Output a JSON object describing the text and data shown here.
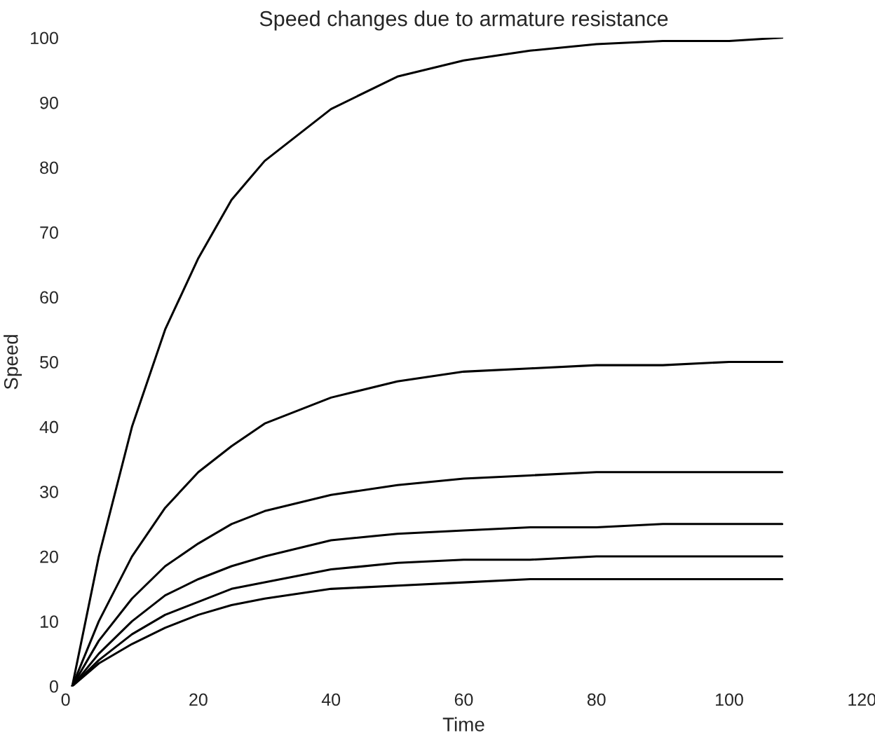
{
  "chart_data": {
    "type": "line",
    "title": "Speed changes due to armature resistance",
    "xlabel": "Time",
    "ylabel": "Speed",
    "x": [
      1,
      5,
      10,
      15,
      20,
      25,
      30,
      40,
      50,
      60,
      70,
      80,
      90,
      100,
      108
    ],
    "series": [
      {
        "color": "#000000",
        "values": [
          0,
          20,
          40,
          55,
          66,
          75,
          81,
          89,
          94,
          96.5,
          98,
          99,
          99.5,
          99.5,
          100
        ]
      },
      {
        "color": "#000000",
        "values": [
          0,
          10,
          20,
          27.5,
          33,
          37,
          40.5,
          44.5,
          47,
          48.5,
          49,
          49.5,
          49.5,
          50,
          50
        ]
      },
      {
        "color": "#000000",
        "values": [
          0,
          7,
          13.5,
          18.5,
          22,
          25,
          27,
          29.5,
          31,
          32,
          32.5,
          33,
          33,
          33,
          33
        ]
      },
      {
        "color": "#000000",
        "values": [
          0,
          5,
          10,
          14,
          16.5,
          18.5,
          20,
          22.5,
          23.5,
          24,
          24.5,
          24.5,
          25,
          25,
          25
        ]
      },
      {
        "color": "#000000",
        "values": [
          0,
          4,
          8,
          11,
          13,
          15,
          16,
          18,
          19,
          19.5,
          19.5,
          20,
          20,
          20,
          20
        ]
      },
      {
        "color": "#000000",
        "values": [
          0,
          3.5,
          6.5,
          9,
          11,
          12.5,
          13.5,
          15,
          15.5,
          16,
          16.5,
          16.5,
          16.5,
          16.5,
          16.5
        ]
      }
    ],
    "xlim": [
      0,
      120
    ],
    "xticks": [
      0,
      20,
      40,
      60,
      80,
      100,
      120
    ],
    "ylim": [
      0,
      100
    ],
    "yticks": [
      0,
      10,
      20,
      30,
      40,
      50,
      60,
      70,
      80,
      90,
      100
    ],
    "grid": false,
    "legend": false,
    "marker": "none",
    "line_style": "solid"
  }
}
